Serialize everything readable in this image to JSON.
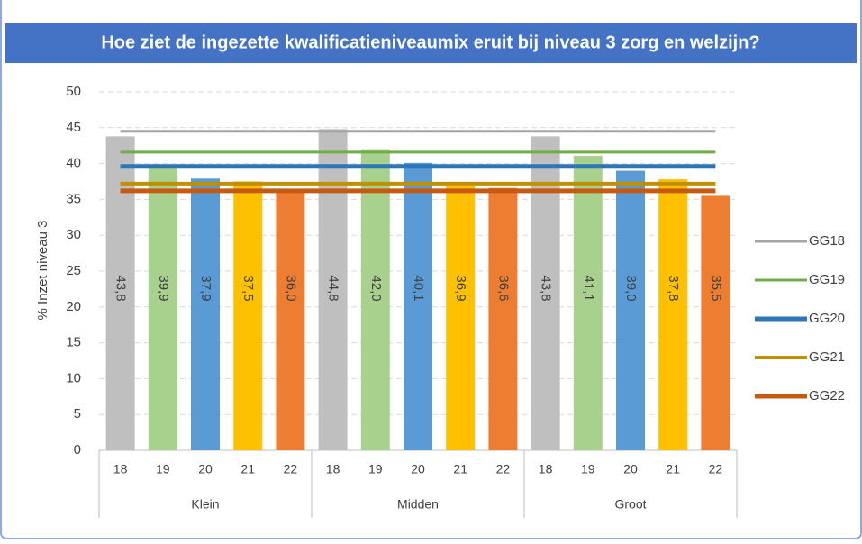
{
  "chart_data": {
    "type": "bar",
    "title": "Hoe ziet de ingezette kwalificatieniveaumix eruit bij niveau 3 zorg en welzijn?",
    "y_label": "% Inzet niveau 3",
    "groups": [
      "Klein",
      "Midden",
      "Groot"
    ],
    "categories": [
      "18",
      "19",
      "20",
      "21",
      "22",
      "18",
      "19",
      "20",
      "21",
      "22",
      "18",
      "19",
      "20",
      "21",
      "22"
    ],
    "values": [
      43.8,
      39.9,
      37.9,
      37.5,
      36.0,
      44.8,
      42.0,
      40.1,
      36.9,
      36.6,
      43.8,
      41.1,
      39.0,
      37.8,
      35.5
    ],
    "value_labels": [
      "43,8",
      "39,9",
      "37,9",
      "37,5",
      "36,0",
      "44,8",
      "42,0",
      "40,1",
      "36,9",
      "36,6",
      "43,8",
      "41,1",
      "39,0",
      "37,8",
      "35,5"
    ],
    "bar_colors": [
      "#bfbfbf",
      "#a9d18e",
      "#5b9bd5",
      "#ffc000",
      "#ed7d31"
    ],
    "lines": [
      {
        "name": "GG18",
        "color": "#a5a5a5",
        "value": 44.5
      },
      {
        "name": "GG19",
        "color": "#70ad47",
        "value": 41.6
      },
      {
        "name": "GG20",
        "color": "#2e75b6",
        "value": 39.6
      },
      {
        "name": "GG21",
        "color": "#bf9000",
        "value": 37.2
      },
      {
        "name": "GG22",
        "color": "#c55a11",
        "value": 36.2
      }
    ],
    "ylim": [
      0,
      50
    ],
    "yticks": [
      0,
      5,
      10,
      15,
      20,
      25,
      30,
      35,
      40,
      45,
      50
    ],
    "grid": true
  }
}
